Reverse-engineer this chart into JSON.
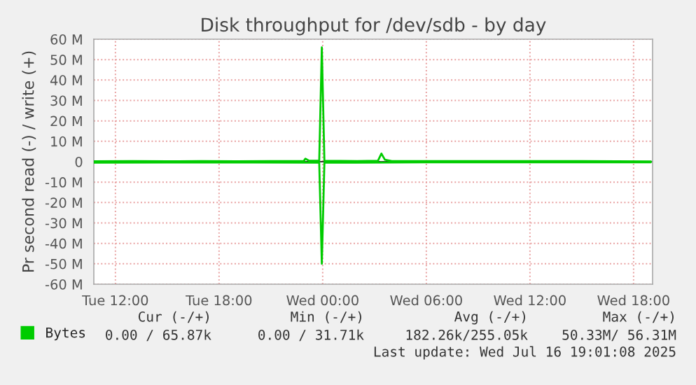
{
  "chart_data": {
    "type": "line",
    "title": "Disk throughput for /dev/sdb - by day",
    "ylabel": "Pr second read (-) / write (+)",
    "series": [
      {
        "name": "Bytes",
        "color": "#00cc00",
        "x": [
          "2025-07-15T10:45",
          "2025-07-15T13:00",
          "2025-07-15T15:00",
          "2025-07-15T17:00",
          "2025-07-15T19:00",
          "2025-07-15T21:00",
          "2025-07-15T22:54",
          "2025-07-15T23:00",
          "2025-07-15T23:12",
          "2025-07-15T23:48",
          "2025-07-15T23:57",
          "2025-07-16T00:06",
          "2025-07-16T02:00",
          "2025-07-16T03:12",
          "2025-07-16T03:24",
          "2025-07-16T03:36",
          "2025-07-16T04:00",
          "2025-07-16T07:00",
          "2025-07-16T10:00",
          "2025-07-16T12:00",
          "2025-07-16T15:00",
          "2025-07-16T17:00",
          "2025-07-16T19:00"
        ],
        "values": [
          0.2,
          0.3,
          0.2,
          0.3,
          0.2,
          0.3,
          0.3,
          1.5,
          0.5,
          0.5,
          56,
          0.5,
          0.3,
          0.5,
          4.0,
          1.0,
          0.3,
          0.3,
          0.3,
          0.3,
          0.3,
          0.2,
          0.1
        ]
      },
      {
        "color": "#00cc00",
        "x": [
          "2025-07-15T10:45",
          "2025-07-15T15:00",
          "2025-07-15T20:00",
          "2025-07-15T23:48",
          "2025-07-15T23:57",
          "2025-07-16T00:06",
          "2025-07-16T06:00",
          "2025-07-16T12:00",
          "2025-07-16T19:00"
        ],
        "values": [
          -0.5,
          -0.4,
          -0.4,
          -0.5,
          -50,
          -0.5,
          -0.3,
          -0.3,
          -0.3
        ]
      }
    ],
    "xlim": [
      "2025-07-15T10:45",
      "2025-07-16T19:06"
    ],
    "xticks": [
      {
        "value": "2025-07-15T12:00",
        "label": "Tue 12:00"
      },
      {
        "value": "2025-07-15T18:00",
        "label": "Tue 18:00"
      },
      {
        "value": "2025-07-16T00:00",
        "label": "Wed 00:00"
      },
      {
        "value": "2025-07-16T06:00",
        "label": "Wed 06:00"
      },
      {
        "value": "2025-07-16T12:00",
        "label": "Wed 12:00"
      },
      {
        "value": "2025-07-16T18:00",
        "label": "Wed 18:00"
      }
    ],
    "ylim": [
      -60,
      60
    ],
    "yticks": [
      {
        "value": -60,
        "label": "-60 M"
      },
      {
        "value": -50,
        "label": "-50 M"
      },
      {
        "value": -40,
        "label": "-40 M"
      },
      {
        "value": -30,
        "label": "-30 M"
      },
      {
        "value": -20,
        "label": "-20 M"
      },
      {
        "value": -10,
        "label": "-10 M"
      },
      0,
      {
        "value": 10,
        "label": "10 M"
      },
      {
        "value": 20,
        "label": "20 M"
      },
      {
        "value": 30,
        "label": "30 M"
      },
      {
        "value": 40,
        "label": "40 M"
      },
      {
        "value": 50,
        "label": "50 M"
      },
      {
        "value": 60,
        "label": "60 M"
      }
    ],
    "ref_lines": [
      {
        "axis": "y",
        "value": 0,
        "color": "#000000"
      }
    ],
    "grid": true,
    "legend": "bottom left",
    "annotations": [
      "Cur (-/+)",
      "Min (-/+)",
      "Avg (-/+)",
      "Max (-/+)",
      "0.00 / 65.87k",
      "0.00 / 31.71k",
      "182.26k/255.05k",
      "50.33M/ 56.31M",
      "Last update: Wed Jul 16 19:01:08 2025"
    ]
  }
}
